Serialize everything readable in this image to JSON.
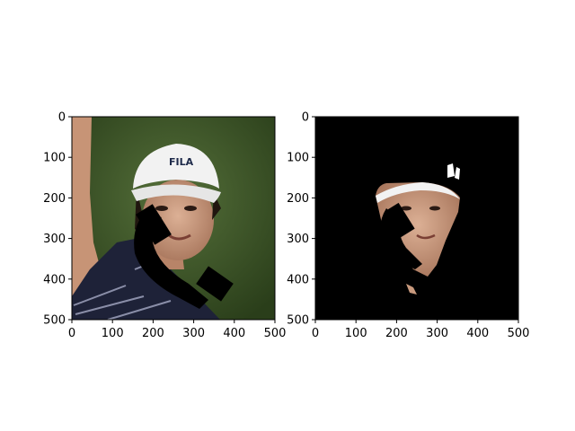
{
  "figure": {
    "panels": [
      {
        "name": "original-photo",
        "xticks": [
          "0",
          "100",
          "200",
          "300",
          "400",
          "500"
        ],
        "yticks": [
          "0",
          "100",
          "200",
          "300",
          "400",
          "500"
        ],
        "cap_text": "FILA"
      },
      {
        "name": "segmented-photo",
        "xticks": [
          "0",
          "100",
          "200",
          "300",
          "400",
          "500"
        ],
        "yticks": [
          "0",
          "100",
          "200",
          "300",
          "400",
          "500"
        ]
      }
    ]
  },
  "colors": {
    "background_green": "#3d5527",
    "shirt_navy": "#1e2238",
    "cap_white": "#f2f2f2",
    "skin": "#c99a7e",
    "mask_black": "#000000"
  }
}
